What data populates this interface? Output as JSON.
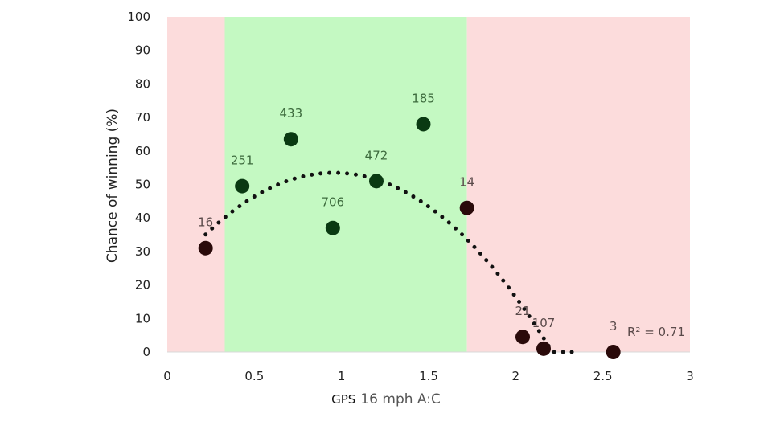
{
  "chart_data": {
    "type": "scatter",
    "xlim": [
      0,
      3
    ],
    "ylim": [
      0,
      100
    ],
    "x_ticks": [
      "0",
      "0.5",
      "1",
      "1.5",
      "2",
      "2.5",
      "3"
    ],
    "y_ticks": [
      "0",
      "10",
      "20",
      "30",
      "40",
      "50",
      "60",
      "70",
      "80",
      "90",
      "100"
    ],
    "ylabel": "Chance of winning (%)",
    "xlabel_part1": "GPS",
    "xlabel_part2": "16 mph A:C",
    "grid": false,
    "background_bands": [
      {
        "x_from": 0,
        "x_to": 0.33,
        "color": "#fcdcdc"
      },
      {
        "x_from": 0.33,
        "x_to": 1.72,
        "color": "#c4f9c2"
      },
      {
        "x_from": 1.72,
        "x_to": 3,
        "color": "#fcdcdc"
      }
    ],
    "points": [
      {
        "x": 0.22,
        "y": 31,
        "label": "16",
        "color": "#2a0a0a"
      },
      {
        "x": 0.43,
        "y": 49.5,
        "label": "251",
        "color": "#0a3a12"
      },
      {
        "x": 0.71,
        "y": 63.5,
        "label": "433",
        "color": "#0a3a12"
      },
      {
        "x": 0.95,
        "y": 37,
        "label": "706",
        "color": "#0a3a12"
      },
      {
        "x": 1.2,
        "y": 51,
        "label": "472",
        "color": "#0a3a12"
      },
      {
        "x": 1.47,
        "y": 68,
        "label": "185",
        "color": "#0a3a12"
      },
      {
        "x": 1.72,
        "y": 43,
        "label": "14",
        "color": "#2a0a0a"
      },
      {
        "x": 2.04,
        "y": 4.5,
        "label": "21",
        "color": "#2a0a0a"
      },
      {
        "x": 2.16,
        "y": 1,
        "label": "107",
        "color": "#2a0a0a"
      },
      {
        "x": 2.56,
        "y": 0,
        "label": "3",
        "color": "#2a0a0a"
      }
    ],
    "trendline": {
      "type": "polynomial",
      "coefficients": [
        22.4,
        65,
        -34
      ],
      "x_range": [
        0.22,
        2.37
      ],
      "r_squared_label": "R² = 0.71"
    }
  }
}
